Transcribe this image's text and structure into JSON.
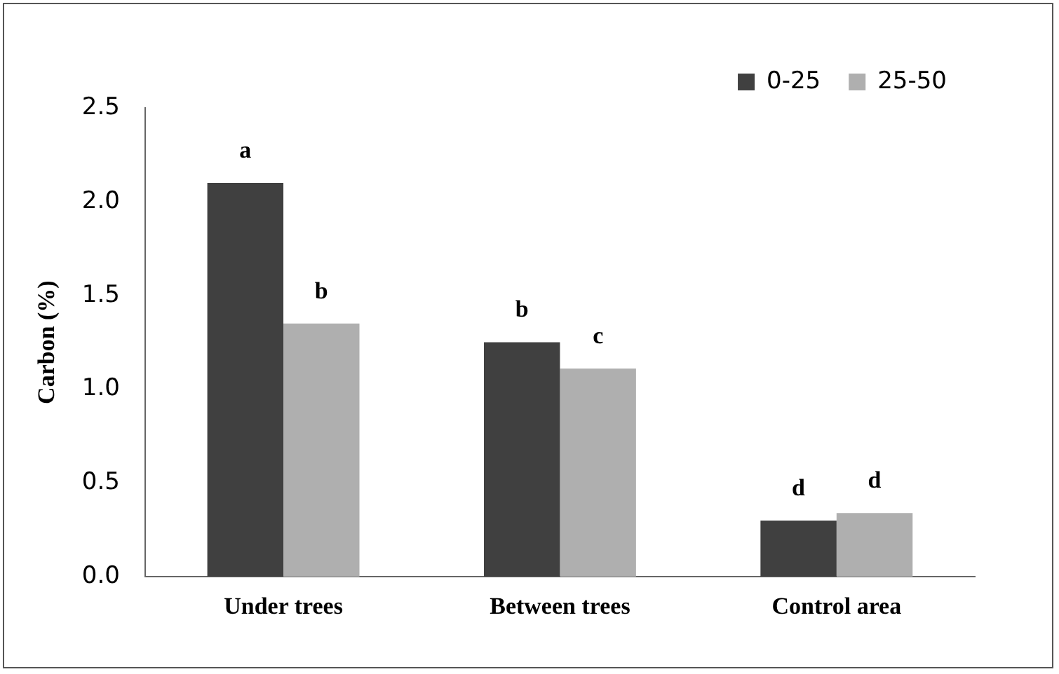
{
  "chart_data": {
    "type": "bar",
    "ylabel": "Carbon (%)",
    "categories": [
      "Under trees",
      "Between trees",
      "Control area"
    ],
    "series": [
      {
        "name": "0-25",
        "color": "#404040",
        "values": [
          2.1,
          1.25,
          0.3
        ]
      },
      {
        "name": "25-50",
        "color": "#afafaf",
        "values": [
          1.35,
          1.11,
          0.34
        ]
      }
    ],
    "ylim": [
      0,
      2.5
    ],
    "yticks": [
      {
        "value": 0,
        "label": "0.0"
      },
      {
        "value": 0.5,
        "label": "0.5"
      },
      {
        "value": 1,
        "label": "1.0"
      },
      {
        "value": 1.5,
        "label": "1.5"
      },
      {
        "value": 2,
        "label": "2.0"
      },
      {
        "value": 2.5,
        "label": "2.5"
      }
    ],
    "grid": false,
    "legend": "top right",
    "annotations": [
      {
        "text": "a",
        "x": "Under trees",
        "y": 2.1
      },
      {
        "text": "b",
        "x": "Under trees",
        "y": 1.35
      },
      {
        "text": "b",
        "x": "Between trees",
        "y": 1.25
      },
      {
        "text": "c",
        "x": "Between trees",
        "y": 1.11
      },
      {
        "text": "d",
        "x": "Control area",
        "y": 0.3
      },
      {
        "text": "d",
        "x": "Control area",
        "y": 0.34
      }
    ]
  }
}
